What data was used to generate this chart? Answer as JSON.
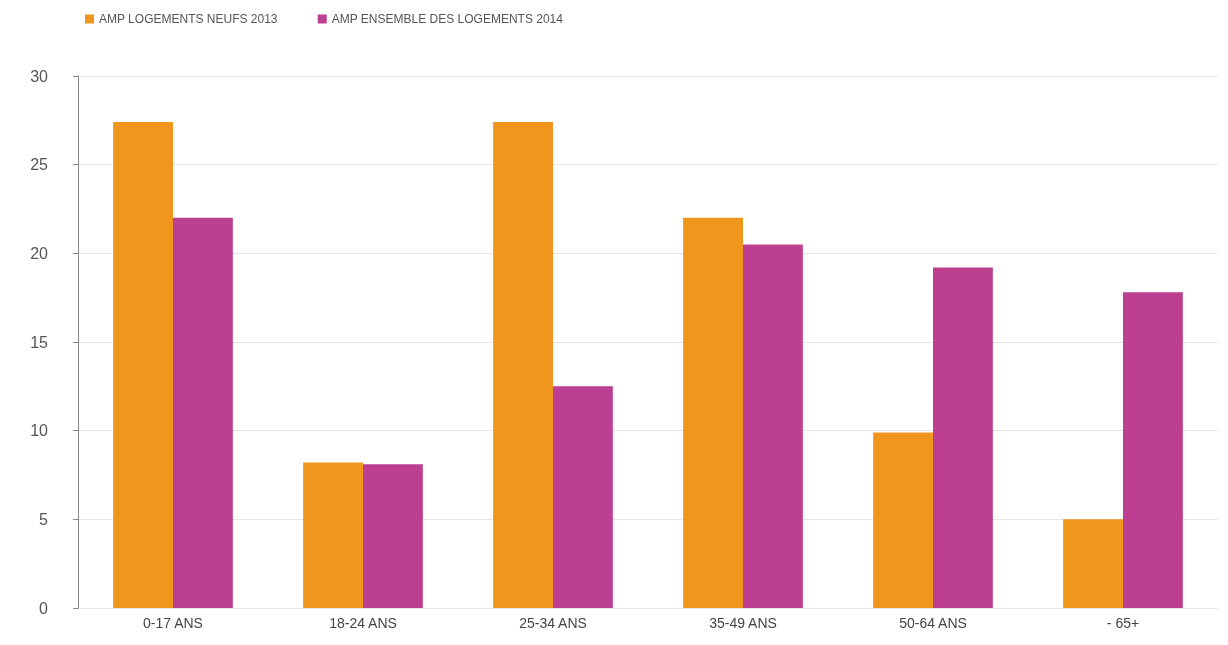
{
  "chart_data": {
    "type": "bar",
    "categories": [
      "0-17 ANS",
      "18-24 ANS",
      "25-34 ANS",
      "35-49 ANS",
      "50-64 ANS",
      "- 65+"
    ],
    "series": [
      {
        "name": "AMP LOGEMENTS NEUFS 2013",
        "color": "#f0961c",
        "values": [
          27.4,
          8.2,
          27.4,
          22.0,
          9.9,
          5.0
        ]
      },
      {
        "name": "AMP ENSEMBLE DES LOGEMENTS 2014",
        "color": "#bc3f91",
        "values": [
          22.0,
          8.1,
          12.5,
          20.5,
          19.2,
          17.8
        ]
      }
    ],
    "ylim": [
      0,
      30
    ],
    "yticks": [
      0,
      5,
      10,
      15,
      20,
      25,
      30
    ],
    "grid": "y",
    "legend": "top left"
  }
}
